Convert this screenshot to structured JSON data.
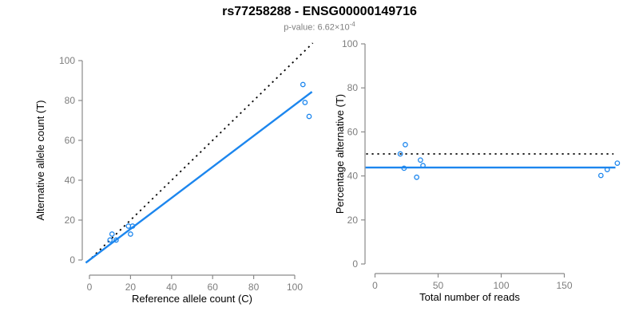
{
  "header": {
    "title": "rs77258288 - ENSG00000149716",
    "p_value_label": "p-value: 6.62×10",
    "p_value_exponent": "-4"
  },
  "colors": {
    "point_blue": "#1c86ee",
    "line_blue": "#1c86ee",
    "identity_black": "#000000",
    "axis_gray": "#8a8a8a",
    "tick_label_gray": "#7d7d7d",
    "axis_title_black": "#000000",
    "subtitle_gray": "#7f7f7f"
  },
  "chart_data": [
    {
      "type": "scatter",
      "name": "allele-counts-scatter",
      "xlabel": "Reference allele count (C)",
      "ylabel": "Alternative allele count (T)",
      "xticks": [
        0,
        20,
        40,
        60,
        80,
        100
      ],
      "yticks": [
        0,
        20,
        40,
        60,
        80,
        100
      ],
      "xlim": [
        -4,
        110
      ],
      "ylim": [
        -4,
        109
      ],
      "grid": false,
      "legend": "none",
      "points": [
        [
          11,
          13
        ],
        [
          10,
          10
        ],
        [
          13,
          10
        ],
        [
          19,
          17
        ],
        [
          21,
          17
        ],
        [
          20,
          13
        ],
        [
          104,
          88
        ],
        [
          105,
          79
        ],
        [
          107,
          72
        ]
      ],
      "lines": [
        {
          "name": "identity-line",
          "style": "dotted",
          "color": "#000000",
          "from": [
            -0.8,
            -0.8
          ],
          "to": [
            108.8,
            108.8
          ],
          "meaning": "expected 1:1 ratio"
        },
        {
          "name": "fit-line",
          "style": "solid",
          "color": "#1c86ee",
          "from": [
            -1.8,
            -1.4
          ],
          "to": [
            108.4,
            84.35
          ],
          "slope": 0.778,
          "meaning": "fitted allelic ratio"
        }
      ]
    },
    {
      "type": "scatter",
      "name": "percentage-vs-reads-scatter",
      "xlabel": "Total number of reads",
      "ylabel": "Percentage alternative (T)",
      "xticks": [
        0,
        50,
        100,
        150
      ],
      "yticks": [
        0,
        20,
        40,
        60,
        80,
        100
      ],
      "xlim": [
        -8,
        195
      ],
      "ylim": [
        0,
        100
      ],
      "grid": false,
      "legend": "none",
      "points": [
        [
          24,
          54.2
        ],
        [
          20,
          50
        ],
        [
          23,
          43.5
        ],
        [
          36,
          47.2
        ],
        [
          38,
          44.7
        ],
        [
          33,
          39.4
        ],
        [
          192,
          45.8
        ],
        [
          184,
          42.9
        ],
        [
          179,
          40.2
        ]
      ],
      "lines": [
        {
          "name": "expected-percentage-line",
          "style": "dotted",
          "color": "#000000",
          "y": 50,
          "x_from": -7,
          "x_to": 189,
          "meaning": "expected 50%"
        },
        {
          "name": "fitted-percentage-line",
          "style": "solid",
          "color": "#1c86ee",
          "y": 43.8,
          "x_from": -7.5,
          "x_to": 190.5,
          "meaning": "fitted percentage"
        }
      ]
    }
  ]
}
